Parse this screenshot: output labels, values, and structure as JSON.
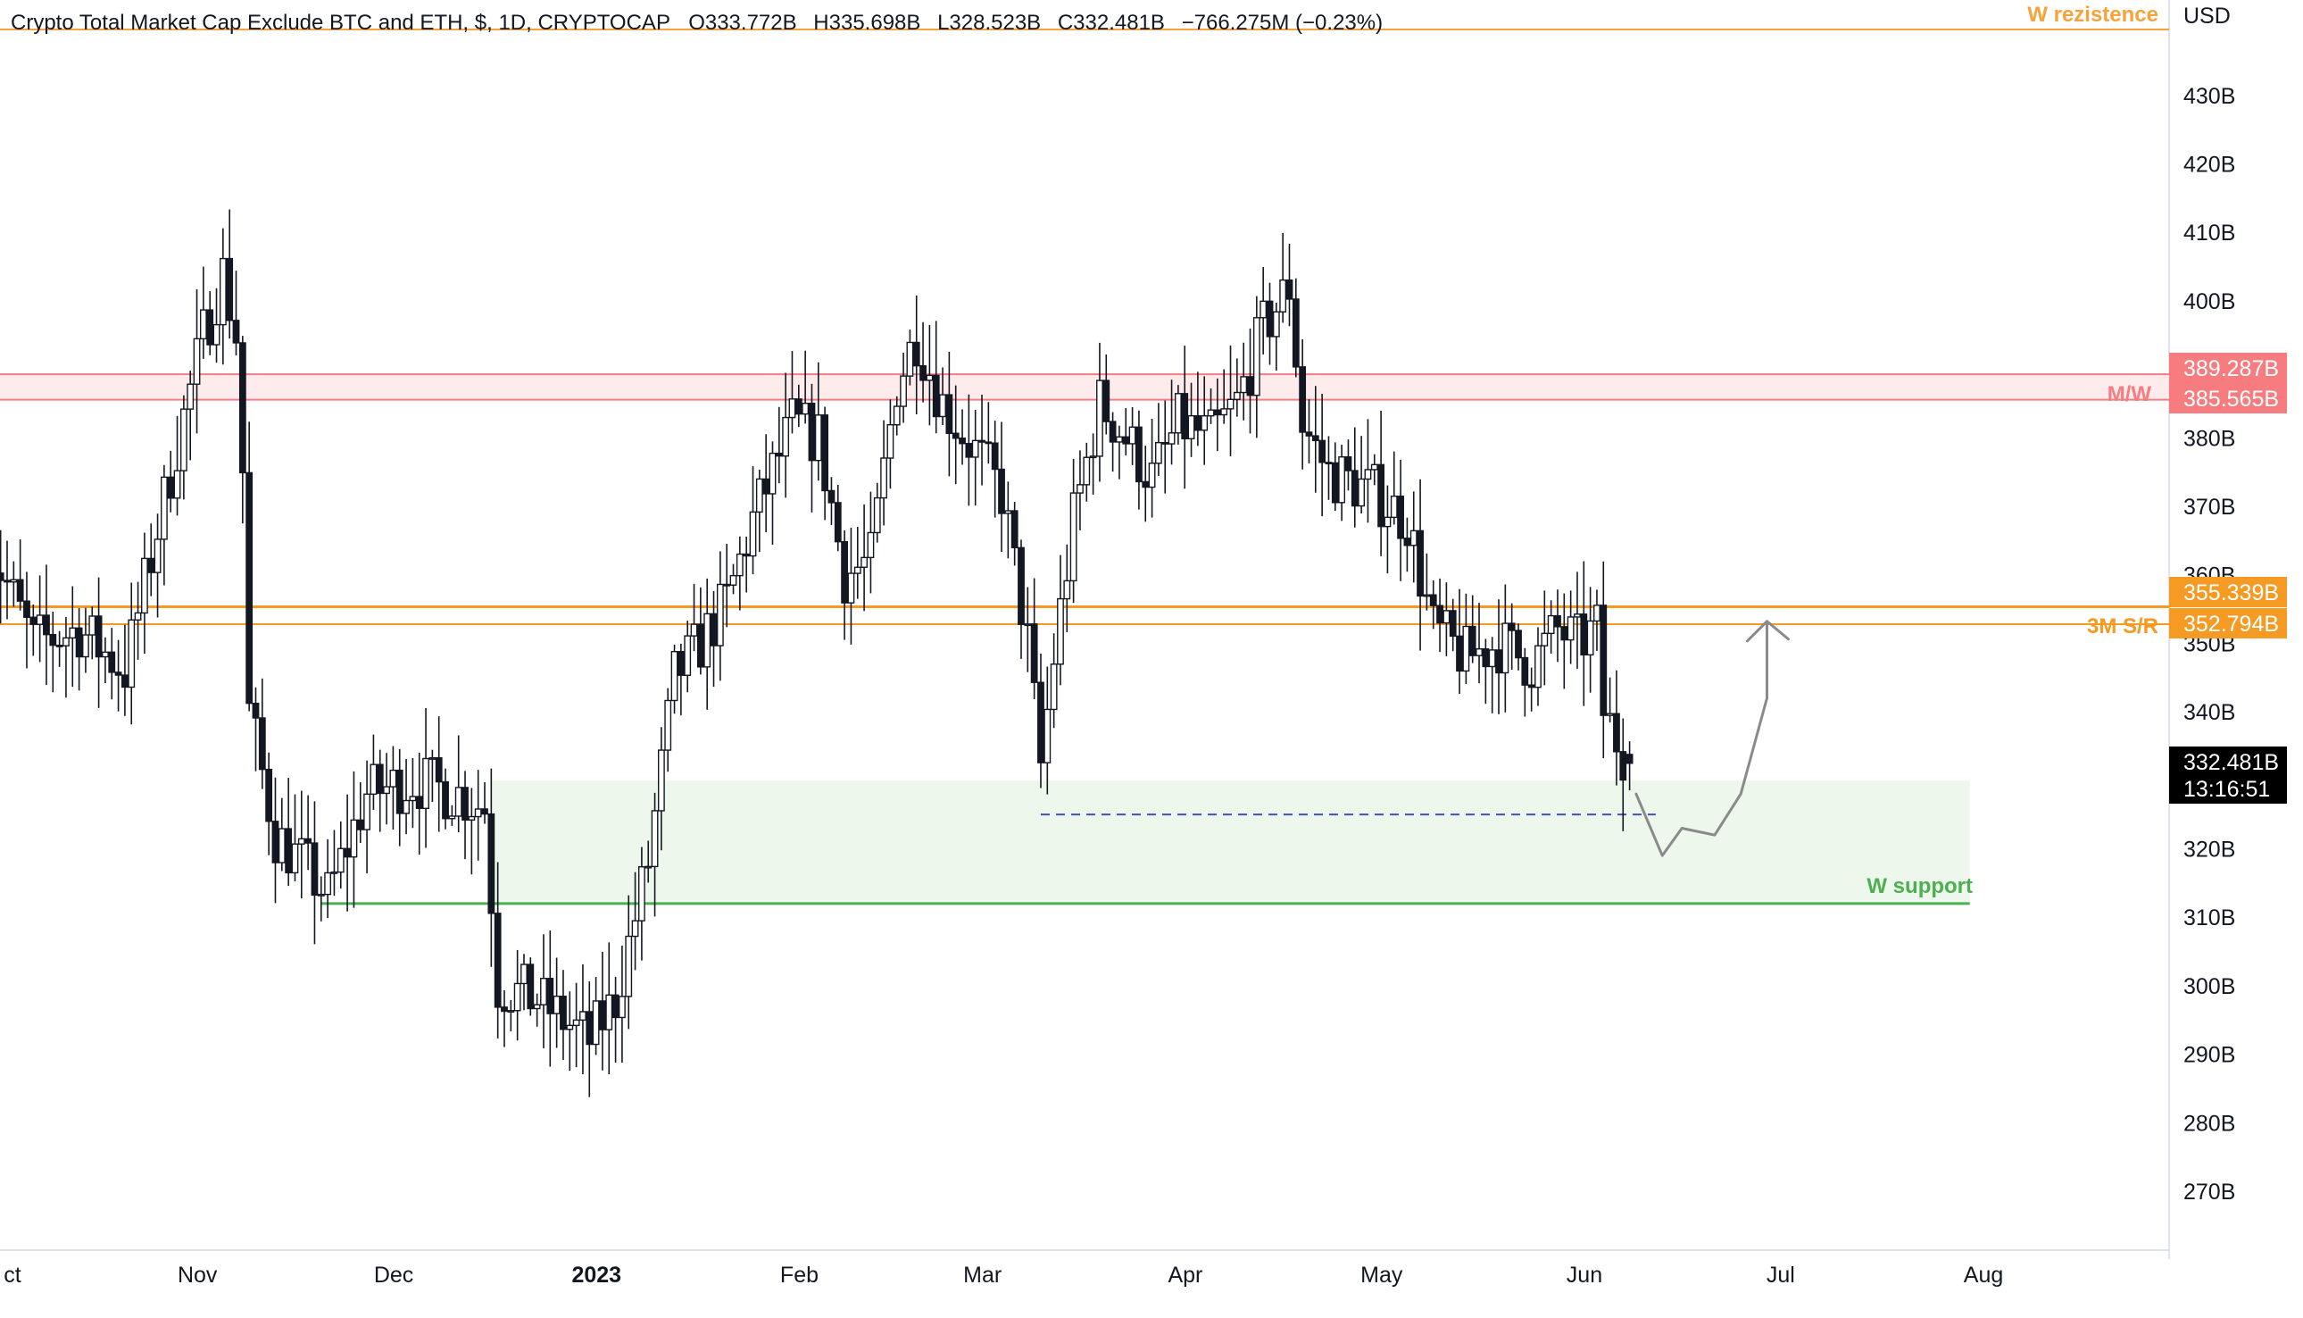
{
  "header": {
    "title": "Crypto Total Market Cap Exclude BTC and ETH, $, 1D, CRYPTOCAP",
    "open": "O333.772B",
    "high": "H335.698B",
    "low": "L328.523B",
    "close": "C332.481B",
    "change": "−766.275M (−0.23%)"
  },
  "price_scale": {
    "currency": "USD",
    "ticks": [
      "430B",
      "420B",
      "410B",
      "400B",
      "380B",
      "370B",
      "360B",
      "350B",
      "340B",
      "320B",
      "310B",
      "300B",
      "290B",
      "280B",
      "270B"
    ]
  },
  "time_scale": {
    "ticks": [
      "ct",
      "Nov",
      "Dec",
      "2023",
      "Feb",
      "Mar",
      "Apr",
      "May",
      "Jun",
      "Jul",
      "Aug"
    ]
  },
  "badges": {
    "mw_top": "389.287B",
    "mw_bottom": "385.565B",
    "sr_top": "355.339B",
    "sr_bottom": "352.794B",
    "last_price": "332.481B",
    "countdown": "13:16:51"
  },
  "annotations": {
    "w_resistance": "W rezistence",
    "mw": "M/W",
    "sr": "3M S/R",
    "w_support": "W support"
  },
  "colors": {
    "up": "#ffffff",
    "down": "#131722",
    "wick": "#131722",
    "orange": "#f7a23b",
    "orange_dark": "#f59a23",
    "red": "#f77c80",
    "red_zone": "#fde4e6",
    "green": "#4caf50",
    "green_zone": "#eef7ec",
    "blue_dash": "#3f51b5",
    "arrow": "#8a8a8a",
    "grid_axis": "#e0e3eb"
  },
  "chart_data": {
    "type": "candlestick",
    "title": "Crypto Total Market Cap Exclude BTC and ETH, $, 1D, CRYPTOCAP",
    "ylim": [
      262,
      445
    ],
    "x_range": [
      "2022-10-01",
      "2023-08-10"
    ],
    "levels": {
      "w_resistance": 444,
      "mw_zone": [
        385.565,
        389.287
      ],
      "sr_zone": [
        352.794,
        355.339
      ],
      "w_support": 312,
      "support_zone_top": 330,
      "dashed_low": 325
    },
    "last": {
      "open": 333.772,
      "high": 335.698,
      "low": 328.523,
      "close": 332.481
    },
    "path_points": [
      [
        "2022-10-01",
        365
      ],
      [
        "2022-10-08",
        350
      ],
      [
        "2022-10-15",
        352
      ],
      [
        "2022-10-22",
        346
      ],
      [
        "2022-10-29",
        375
      ],
      [
        "2022-11-03",
        395
      ],
      [
        "2022-11-06",
        404
      ],
      [
        "2022-11-08",
        395
      ],
      [
        "2022-11-09",
        375
      ],
      [
        "2022-11-10",
        340
      ],
      [
        "2022-11-14",
        322
      ],
      [
        "2022-11-18",
        318
      ],
      [
        "2022-11-22",
        313
      ],
      [
        "2022-11-28",
        328
      ],
      [
        "2022-12-05",
        330
      ],
      [
        "2022-12-12",
        328
      ],
      [
        "2022-12-16",
        326
      ],
      [
        "2022-12-18",
        300
      ],
      [
        "2022-12-24",
        298
      ],
      [
        "2023-01-01",
        292
      ],
      [
        "2023-01-05",
        298
      ],
      [
        "2023-01-10",
        318
      ],
      [
        "2023-01-14",
        345
      ],
      [
        "2023-01-18",
        350
      ],
      [
        "2023-01-22",
        356
      ],
      [
        "2023-01-26",
        368
      ],
      [
        "2023-02-01",
        382
      ],
      [
        "2023-02-05",
        380
      ],
      [
        "2023-02-09",
        360
      ],
      [
        "2023-02-13",
        362
      ],
      [
        "2023-02-17",
        388
      ],
      [
        "2023-02-20",
        395
      ],
      [
        "2023-02-24",
        385
      ],
      [
        "2023-03-01",
        378
      ],
      [
        "2023-03-05",
        372
      ],
      [
        "2023-03-09",
        350
      ],
      [
        "2023-03-11",
        332
      ],
      [
        "2023-03-13",
        348
      ],
      [
        "2023-03-16",
        368
      ],
      [
        "2023-03-20",
        385
      ],
      [
        "2023-03-24",
        380
      ],
      [
        "2023-03-28",
        374
      ],
      [
        "2023-04-01",
        382
      ],
      [
        "2023-04-06",
        380
      ],
      [
        "2023-04-10",
        385
      ],
      [
        "2023-04-14",
        396
      ],
      [
        "2023-04-18",
        402
      ],
      [
        "2023-04-20",
        382
      ],
      [
        "2023-04-24",
        375
      ],
      [
        "2023-05-01",
        372
      ],
      [
        "2023-05-06",
        368
      ],
      [
        "2023-05-10",
        352
      ],
      [
        "2023-05-15",
        348
      ],
      [
        "2023-05-20",
        350
      ],
      [
        "2023-05-25",
        347
      ],
      [
        "2023-05-29",
        352
      ],
      [
        "2023-06-01",
        350
      ],
      [
        "2023-06-04",
        352
      ],
      [
        "2023-06-05",
        340
      ],
      [
        "2023-06-07",
        336
      ],
      [
        "2023-06-09",
        332.481
      ]
    ],
    "projection": [
      [
        "2023-06-10",
        328
      ],
      [
        "2023-06-14",
        319
      ],
      [
        "2023-06-17",
        323
      ],
      [
        "2023-06-22",
        322
      ],
      [
        "2023-06-26",
        328
      ],
      [
        "2023-06-30",
        342
      ]
    ]
  }
}
